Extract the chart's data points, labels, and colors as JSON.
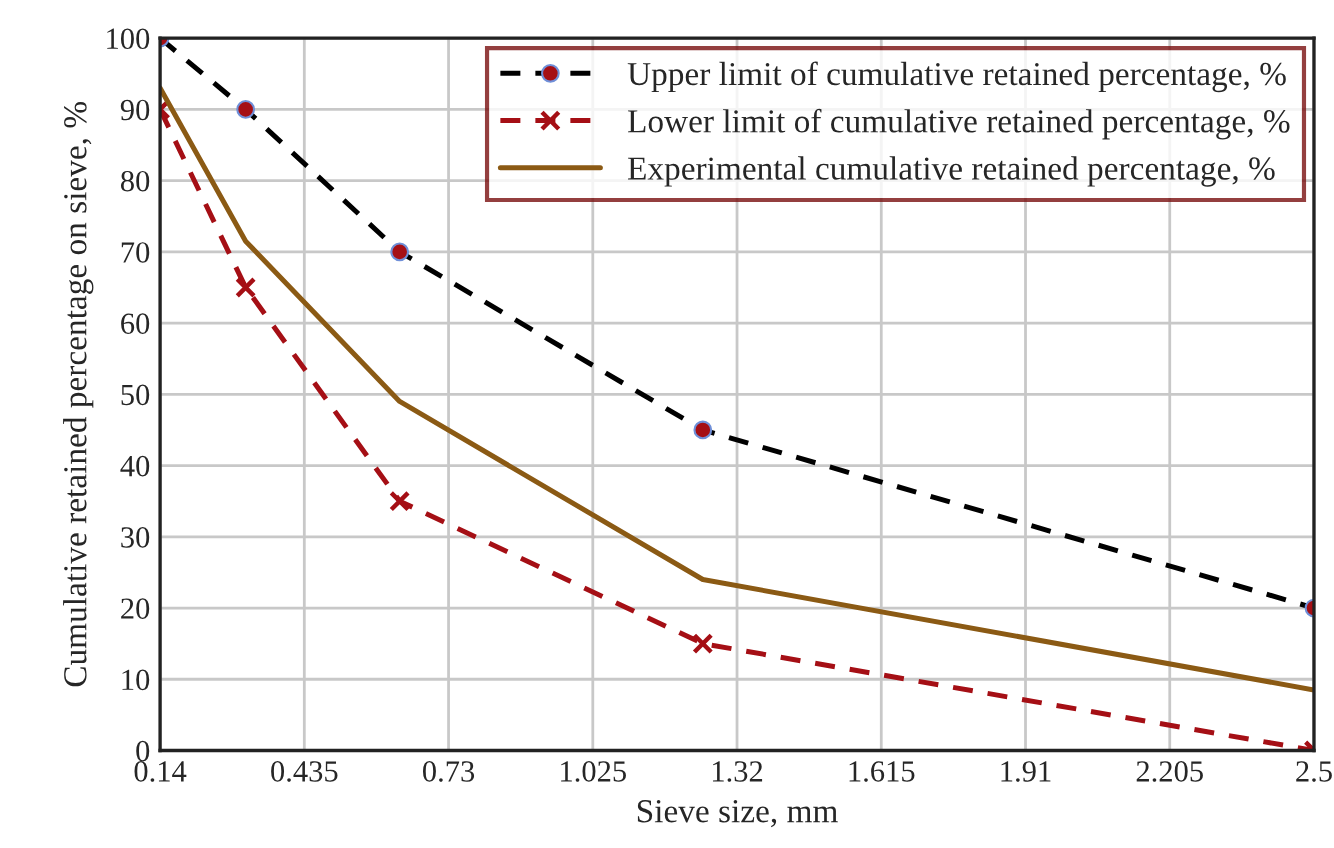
{
  "chart_data": {
    "type": "line",
    "xlabel": "Sieve size, mm",
    "ylabel": "Cumulative retained percentage on sieve, %",
    "x": [
      0.14,
      0.315,
      0.63,
      1.25,
      2.5
    ],
    "series": [
      {
        "name": "Upper limit of cumulative retained percentage, %",
        "color": "#000000",
        "values": [
          100,
          90,
          70,
          45,
          20
        ],
        "marker": "circle",
        "line_style": "dashed"
      },
      {
        "name": "Lower limit of cumulative retained percentage, %",
        "color": "#a50f15",
        "values": [
          90,
          65,
          35,
          15,
          0
        ],
        "marker": "cross",
        "line_style": "dashed"
      },
      {
        "name": "Experimental cumulative retained percentage, %",
        "color": "#8b5a14",
        "values": [
          93,
          71.5,
          49,
          24,
          8.5
        ],
        "marker": "none",
        "line_style": "solid"
      }
    ],
    "xlim": [
      0.14,
      2.5
    ],
    "ylim": [
      0,
      100
    ],
    "xticks": [
      0.14,
      0.435,
      0.73,
      1.025,
      1.32,
      1.615,
      1.91,
      2.205,
      2.5
    ],
    "yticks": [
      0,
      10,
      20,
      30,
      40,
      50,
      60,
      70,
      80,
      90,
      100
    ],
    "grid": true,
    "legend": "top right"
  }
}
